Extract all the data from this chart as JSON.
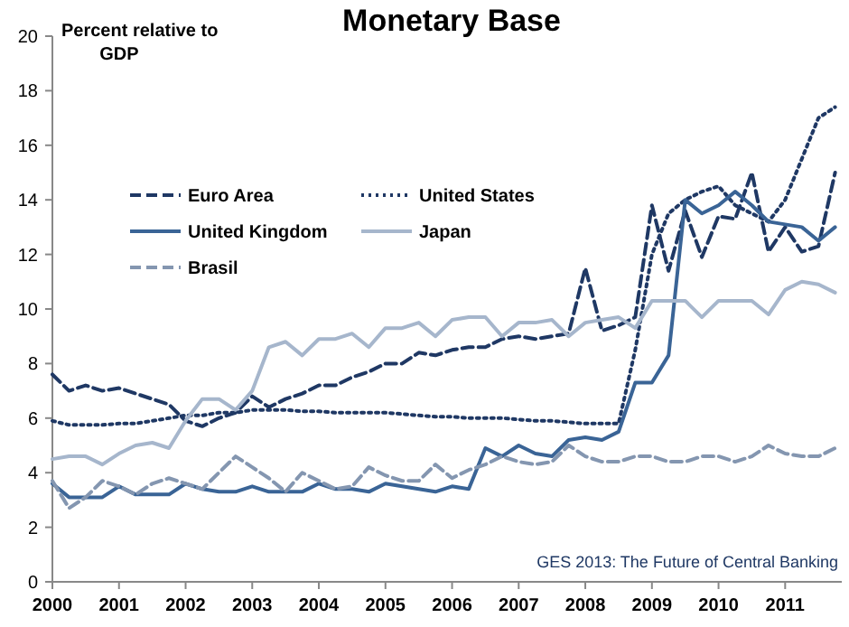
{
  "chart_data": {
    "type": "line",
    "title": "Monetary Base",
    "ylabel": "Percent relative to GDP",
    "annotations": [
      "GES 2013: The Future of Central Banking"
    ],
    "x": [
      2000,
      2000.25,
      2000.5,
      2000.75,
      2001,
      2001.25,
      2001.5,
      2001.75,
      2002,
      2002.25,
      2002.5,
      2002.75,
      2003,
      2003.25,
      2003.5,
      2003.75,
      2004,
      2004.25,
      2004.5,
      2004.75,
      2005,
      2005.25,
      2005.5,
      2005.75,
      2006,
      2006.25,
      2006.5,
      2006.75,
      2007,
      2007.25,
      2007.5,
      2007.75,
      2008,
      2008.25,
      2008.5,
      2008.75,
      2009,
      2009.25,
      2009.5,
      2009.75,
      2010,
      2010.25,
      2010.5,
      2010.75,
      2011,
      2011.25,
      2011.5,
      2011.75
    ],
    "xlim": [
      2000,
      2011.85
    ],
    "xticks": [
      2000,
      2001,
      2002,
      2003,
      2004,
      2005,
      2006,
      2007,
      2008,
      2009,
      2010,
      2011
    ],
    "ylim": [
      0,
      20
    ],
    "yticks": [
      0,
      2,
      4,
      6,
      8,
      10,
      12,
      14,
      16,
      18,
      20
    ],
    "grid": false,
    "legend": "top left",
    "series": [
      {
        "name": "Euro Area",
        "color": "#1f3864",
        "line_style": "dashed",
        "values": [
          7.6,
          7.0,
          7.2,
          7.0,
          7.1,
          6.9,
          6.7,
          6.5,
          5.9,
          5.7,
          6.0,
          6.2,
          6.8,
          6.4,
          6.7,
          6.9,
          7.2,
          7.2,
          7.5,
          7.7,
          8.0,
          8.0,
          8.4,
          8.3,
          8.5,
          8.6,
          8.6,
          8.9,
          9.0,
          8.9,
          9.0,
          9.1,
          11.5,
          9.2,
          9.4,
          9.7,
          13.8,
          11.4,
          13.6,
          11.9,
          13.4,
          13.3,
          15.0,
          12.1,
          13.0,
          12.1,
          12.3,
          15.0
        ]
      },
      {
        "name": "United States",
        "color": "#1f3864",
        "line_style": "dotted",
        "values": [
          5.9,
          5.75,
          5.75,
          5.75,
          5.8,
          5.8,
          5.9,
          6.0,
          6.1,
          6.1,
          6.2,
          6.2,
          6.3,
          6.3,
          6.3,
          6.25,
          6.25,
          6.2,
          6.2,
          6.2,
          6.2,
          6.15,
          6.1,
          6.05,
          6.05,
          6.0,
          6.0,
          6.0,
          5.95,
          5.9,
          5.9,
          5.85,
          5.8,
          5.8,
          5.8,
          8.5,
          12.0,
          13.5,
          14.0,
          14.3,
          14.5,
          13.8,
          13.5,
          13.2,
          14.0,
          15.5,
          17.0,
          17.4
        ]
      },
      {
        "name": "United Kingdom",
        "color": "#3a6496",
        "line_style": "solid",
        "values": [
          3.6,
          3.1,
          3.1,
          3.1,
          3.5,
          3.2,
          3.2,
          3.2,
          3.6,
          3.4,
          3.3,
          3.3,
          3.5,
          3.3,
          3.3,
          3.3,
          3.6,
          3.4,
          3.4,
          3.3,
          3.6,
          3.5,
          3.4,
          3.3,
          3.5,
          3.4,
          4.9,
          4.6,
          5.0,
          4.7,
          4.6,
          5.2,
          5.3,
          5.2,
          5.5,
          7.3,
          7.3,
          8.3,
          14.0,
          13.5,
          13.8,
          14.3,
          13.8,
          13.2,
          13.1,
          13.0,
          12.5,
          13.0
        ]
      },
      {
        "name": "Japan",
        "color": "#a6b6cc",
        "line_style": "solid",
        "values": [
          4.5,
          4.6,
          4.6,
          4.3,
          4.7,
          5.0,
          5.1,
          4.9,
          5.9,
          6.7,
          6.7,
          6.3,
          7.0,
          8.6,
          8.8,
          8.3,
          8.9,
          8.9,
          9.1,
          8.6,
          9.3,
          9.3,
          9.5,
          9.0,
          9.6,
          9.7,
          9.7,
          9.0,
          9.5,
          9.5,
          9.6,
          9.0,
          9.5,
          9.6,
          9.7,
          9.3,
          10.3,
          10.3,
          10.3,
          9.7,
          10.3,
          10.3,
          10.3,
          9.8,
          10.7,
          11.0,
          10.9,
          10.6
        ]
      },
      {
        "name": "Brasil",
        "color": "#8496b0",
        "line_style": "dashed",
        "values": [
          3.7,
          2.7,
          3.1,
          3.7,
          3.5,
          3.2,
          3.6,
          3.8,
          3.6,
          3.4,
          4.0,
          4.6,
          4.2,
          3.8,
          3.3,
          4.0,
          3.7,
          3.4,
          3.5,
          4.2,
          3.9,
          3.7,
          3.7,
          4.3,
          3.8,
          4.1,
          4.3,
          4.6,
          4.4,
          4.3,
          4.4,
          5.0,
          4.6,
          4.4,
          4.4,
          4.6,
          4.6,
          4.4,
          4.4,
          4.6,
          4.6,
          4.4,
          4.6,
          5.0,
          4.7,
          4.6,
          4.6,
          4.9
        ]
      }
    ]
  }
}
